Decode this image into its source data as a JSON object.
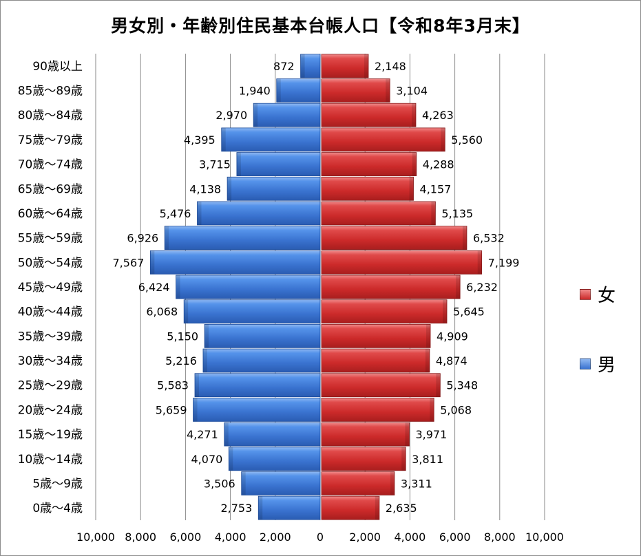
{
  "chart_data": {
    "type": "bar",
    "orientation": "horizontal",
    "title": "男女別・年齢別住民基本台帳人口【令和8年3月末】",
    "categories": [
      "0歳～4歳",
      "5歳～9歳",
      "10歳～14歳",
      "15歳～19歳",
      "20歳～24歳",
      "25歳～29歳",
      "30歳～34歳",
      "35歳～39歳",
      "40歳～44歳",
      "45歳～49歳",
      "50歳～54歳",
      "55歳～59歳",
      "60歳～64歳",
      "65歳～69歳",
      "70歳～74歳",
      "75歳～79歳",
      "80歳～84歳",
      "85歳～89歳",
      "90歳以上"
    ],
    "series": [
      {
        "name": "男",
        "color": "#4a86e8",
        "values": [
          2753,
          3506,
          4070,
          4271,
          5659,
          5583,
          5216,
          5150,
          6068,
          6424,
          7567,
          6926,
          5476,
          4138,
          3715,
          4395,
          2970,
          1940,
          872
        ]
      },
      {
        "name": "女",
        "color": "#e03a3a",
        "values": [
          2635,
          3311,
          3811,
          3971,
          5068,
          5348,
          4874,
          4909,
          5645,
          6232,
          7199,
          6532,
          5135,
          4157,
          4288,
          5560,
          4263,
          3104,
          2148
        ]
      }
    ],
    "x_ticks": [
      "10,000",
      "8,000",
      "6,000",
      "4,000",
      "2,000",
      "0",
      "2,000",
      "4,000",
      "6,000",
      "8,000",
      "10,000"
    ],
    "xlim": [
      -10000,
      10000
    ],
    "grid": true,
    "legend_position": "right"
  }
}
